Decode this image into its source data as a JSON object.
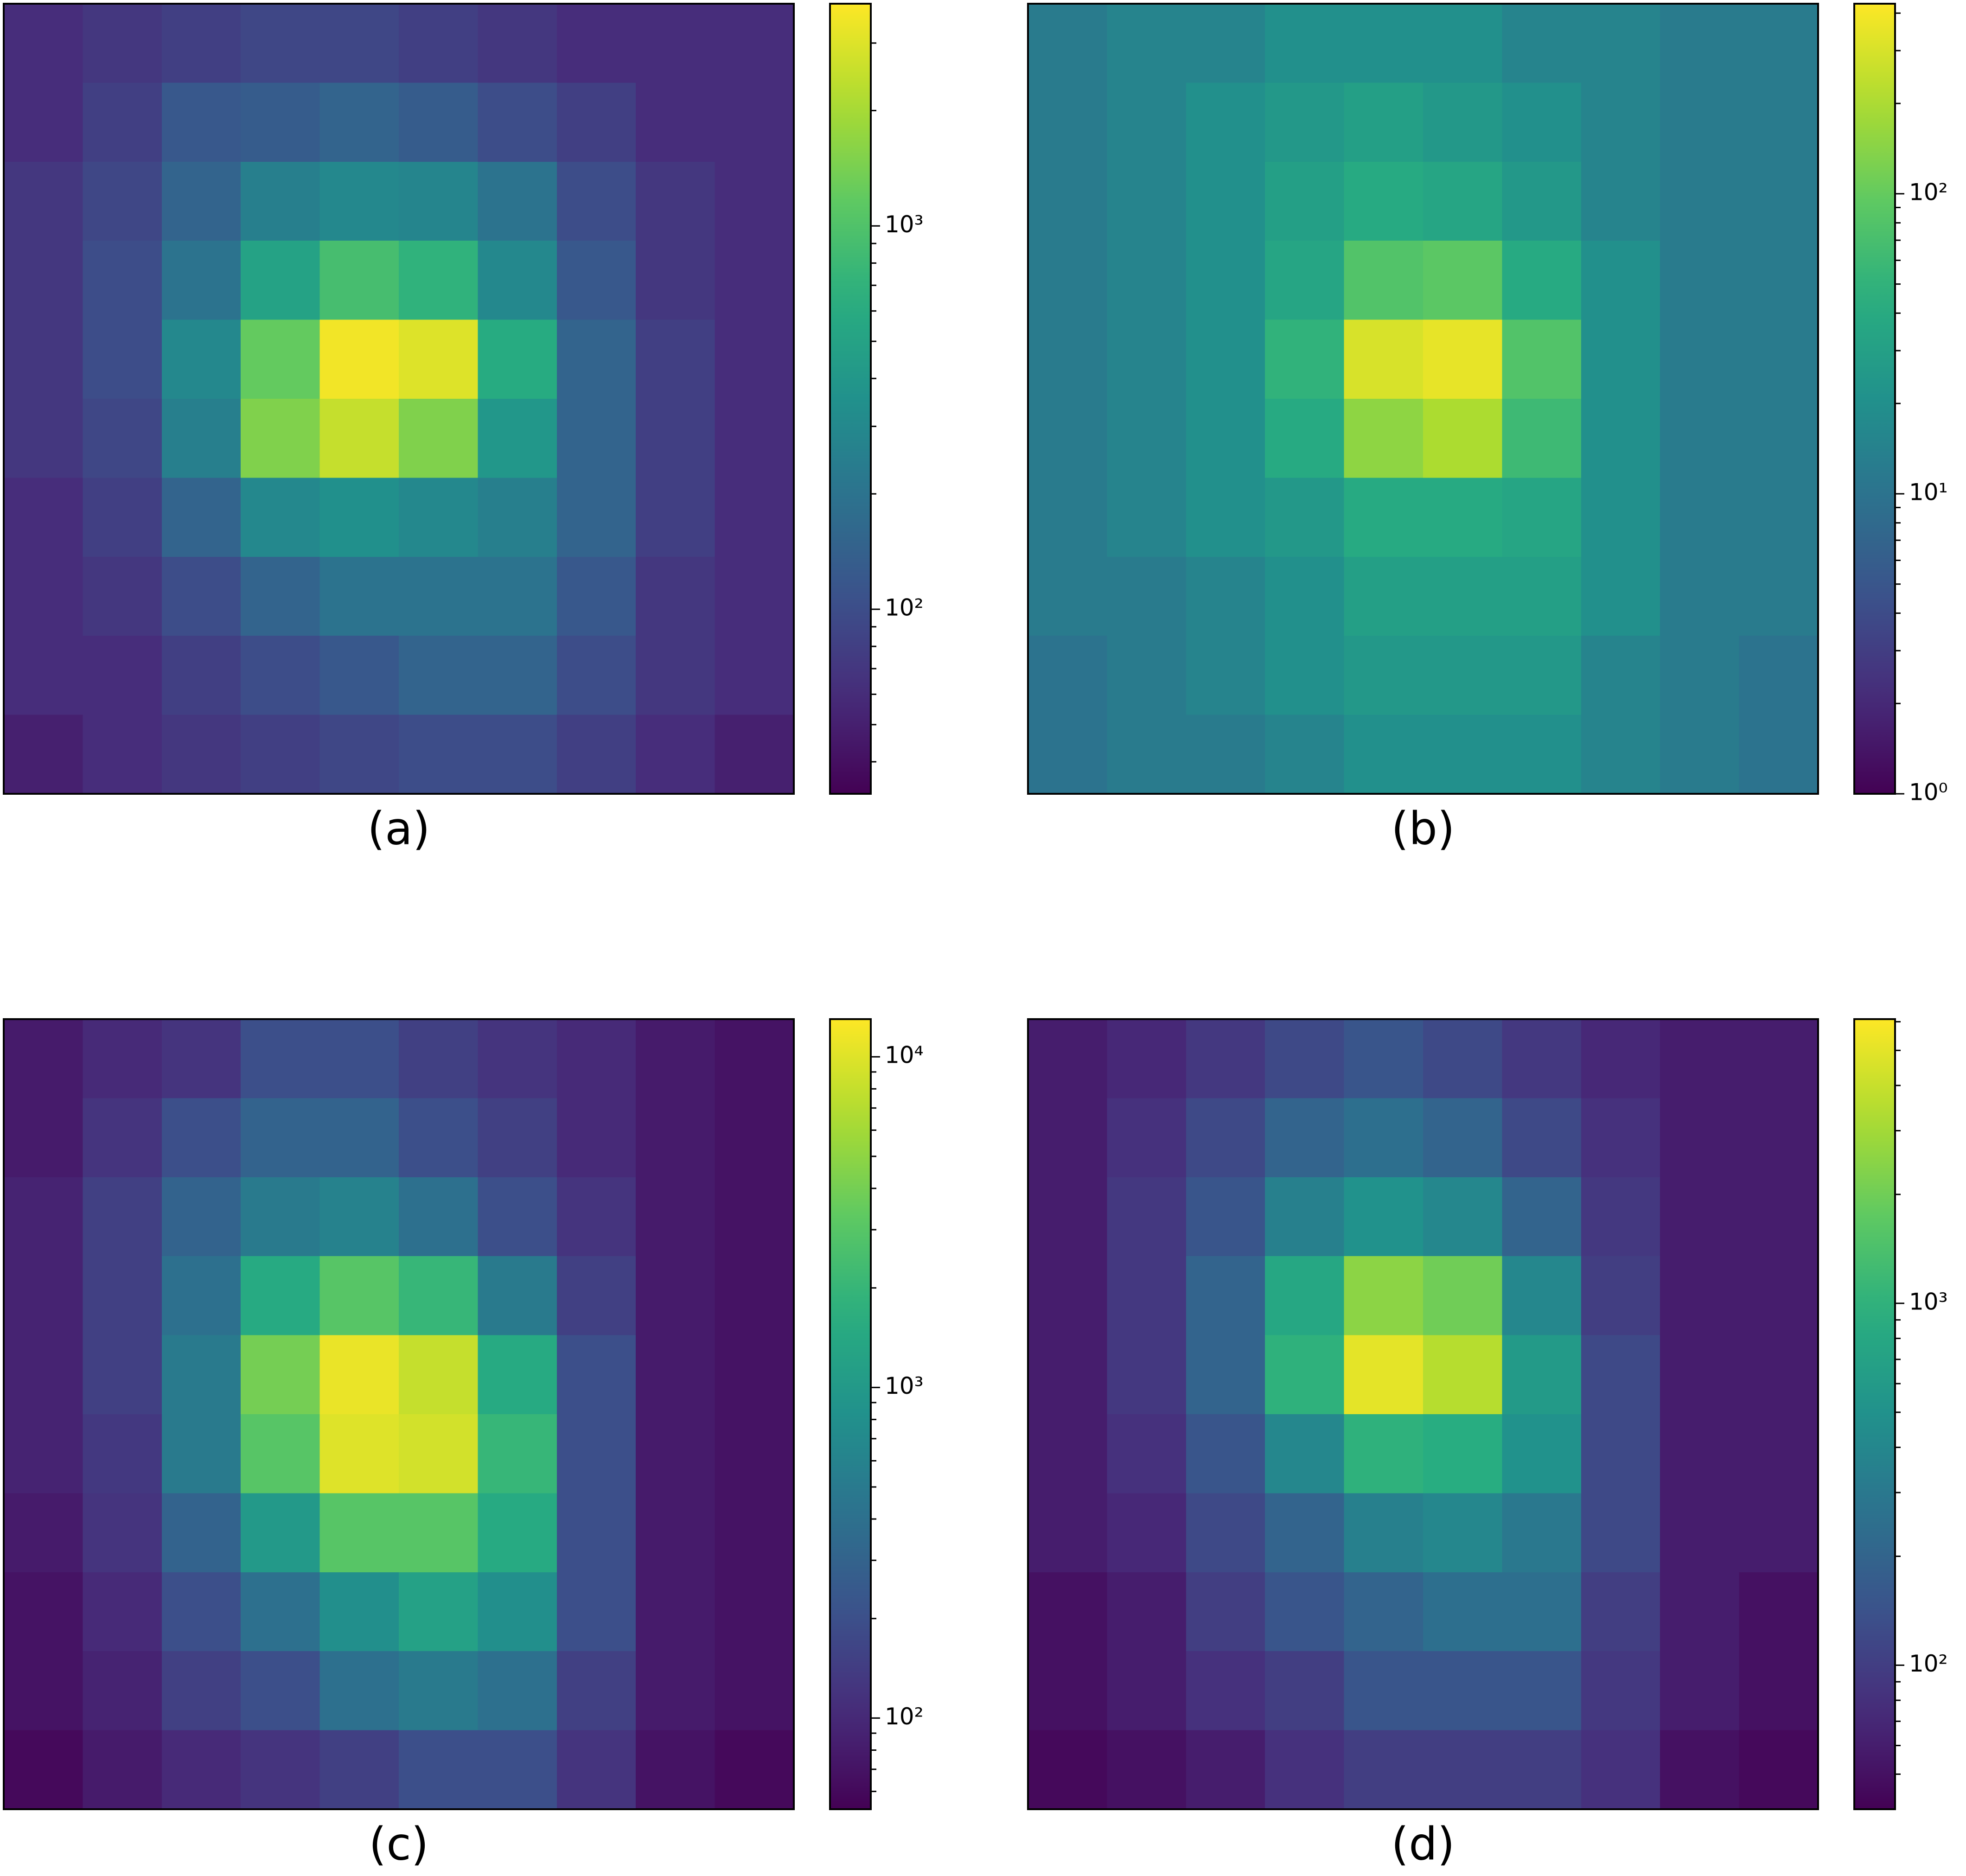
{
  "chart_data": [
    {
      "type": "heatmap",
      "caption": "(a)",
      "colormap": "viridis",
      "log_scale": true,
      "values": [
        [
          60,
          70,
          80,
          90,
          90,
          80,
          70,
          60,
          60,
          60
        ],
        [
          60,
          80,
          120,
          130,
          150,
          130,
          100,
          80,
          60,
          60
        ],
        [
          70,
          90,
          150,
          250,
          300,
          280,
          200,
          100,
          70,
          60
        ],
        [
          70,
          100,
          200,
          500,
          900,
          700,
          300,
          120,
          70,
          60
        ],
        [
          70,
          100,
          300,
          1200,
          3500,
          3000,
          600,
          150,
          80,
          60
        ],
        [
          70,
          90,
          250,
          1500,
          2500,
          1500,
          400,
          150,
          80,
          60
        ],
        [
          60,
          80,
          150,
          300,
          350,
          300,
          250,
          150,
          80,
          60
        ],
        [
          60,
          70,
          100,
          150,
          200,
          200,
          200,
          120,
          70,
          60
        ],
        [
          60,
          60,
          80,
          100,
          120,
          150,
          150,
          100,
          70,
          60
        ],
        [
          50,
          60,
          70,
          80,
          90,
          100,
          100,
          80,
          60,
          50
        ]
      ],
      "ylim": [
        33,
        3800
      ],
      "yticks": [
        {
          "value": 100,
          "label": "10²"
        },
        {
          "value": 1000,
          "label": "10³"
        }
      ],
      "yminorticks": [
        40,
        50,
        60,
        70,
        80,
        90,
        200,
        300,
        400,
        500,
        600,
        700,
        800,
        900,
        2000,
        3000
      ]
    },
    {
      "type": "heatmap",
      "caption": "(b)",
      "colormap": "viridis",
      "log_scale": true,
      "values": [
        [
          12,
          15,
          15,
          20,
          20,
          20,
          15,
          15,
          12,
          12
        ],
        [
          12,
          15,
          20,
          25,
          30,
          25,
          20,
          15,
          12,
          12
        ],
        [
          12,
          15,
          20,
          30,
          40,
          35,
          25,
          15,
          12,
          12
        ],
        [
          12,
          15,
          20,
          35,
          80,
          90,
          40,
          20,
          12,
          12
        ],
        [
          12,
          15,
          20,
          50,
          300,
          350,
          80,
          20,
          12,
          12
        ],
        [
          12,
          15,
          20,
          40,
          150,
          200,
          60,
          20,
          12,
          12
        ],
        [
          12,
          15,
          20,
          25,
          40,
          40,
          35,
          20,
          12,
          12
        ],
        [
          12,
          12,
          15,
          20,
          30,
          30,
          30,
          20,
          12,
          12
        ],
        [
          10,
          12,
          15,
          20,
          25,
          25,
          25,
          15,
          12,
          10
        ],
        [
          10,
          12,
          12,
          15,
          20,
          20,
          20,
          15,
          12,
          10
        ]
      ],
      "ylim": [
        1,
        430
      ],
      "yticks": [
        {
          "value": 1,
          "label": "10⁰"
        },
        {
          "value": 10,
          "label": "10¹"
        },
        {
          "value": 100,
          "label": "10²"
        }
      ],
      "yminorticks": [
        2,
        3,
        4,
        5,
        6,
        7,
        8,
        9,
        20,
        30,
        40,
        50,
        60,
        70,
        80,
        90,
        200,
        300,
        400
      ]
    },
    {
      "type": "heatmap",
      "caption": "(c)",
      "colormap": "viridis",
      "log_scale": true,
      "values": [
        [
          80,
          100,
          120,
          200,
          200,
          150,
          120,
          100,
          80,
          70
        ],
        [
          80,
          120,
          200,
          300,
          300,
          200,
          150,
          100,
          80,
          70
        ],
        [
          90,
          150,
          300,
          500,
          600,
          400,
          200,
          120,
          80,
          70
        ],
        [
          90,
          150,
          400,
          1500,
          3000,
          2000,
          500,
          150,
          80,
          70
        ],
        [
          90,
          150,
          500,
          4000,
          11000,
          8000,
          1500,
          200,
          80,
          70
        ],
        [
          90,
          130,
          500,
          3000,
          10000,
          9000,
          2000,
          200,
          80,
          70
        ],
        [
          80,
          120,
          300,
          1000,
          3000,
          3000,
          1500,
          200,
          80,
          70
        ],
        [
          70,
          100,
          200,
          400,
          800,
          1200,
          800,
          200,
          80,
          70
        ],
        [
          70,
          90,
          150,
          200,
          400,
          500,
          400,
          150,
          80,
          70
        ],
        [
          60,
          80,
          100,
          120,
          150,
          200,
          200,
          120,
          70,
          60
        ]
      ],
      "ylim": [
        53,
        13000
      ],
      "yticks": [
        {
          "value": 100,
          "label": "10²"
        },
        {
          "value": 1000,
          "label": "10³"
        },
        {
          "value": 10000,
          "label": "10⁴"
        }
      ],
      "yminorticks": [
        60,
        70,
        80,
        90,
        200,
        300,
        400,
        500,
        600,
        700,
        800,
        900,
        2000,
        3000,
        4000,
        5000,
        6000,
        7000,
        8000,
        9000
      ]
    },
    {
      "type": "heatmap",
      "caption": "(d)",
      "colormap": "viridis",
      "log_scale": true,
      "values": [
        [
          60,
          70,
          90,
          120,
          150,
          120,
          90,
          70,
          60,
          60
        ],
        [
          60,
          80,
          120,
          200,
          250,
          200,
          120,
          80,
          60,
          60
        ],
        [
          60,
          90,
          150,
          350,
          500,
          400,
          200,
          90,
          60,
          60
        ],
        [
          60,
          90,
          200,
          800,
          2500,
          2000,
          400,
          100,
          60,
          60
        ],
        [
          60,
          90,
          200,
          1000,
          5000,
          3500,
          600,
          120,
          60,
          60
        ],
        [
          60,
          80,
          150,
          400,
          1000,
          900,
          500,
          120,
          60,
          60
        ],
        [
          60,
          70,
          120,
          200,
          350,
          400,
          300,
          120,
          60,
          60
        ],
        [
          50,
          60,
          100,
          150,
          200,
          250,
          250,
          100,
          60,
          50
        ],
        [
          50,
          60,
          80,
          100,
          150,
          150,
          150,
          90,
          60,
          50
        ],
        [
          45,
          50,
          60,
          80,
          100,
          100,
          100,
          80,
          50,
          45
        ]
      ],
      "ylim": [
        40,
        6100
      ],
      "yticks": [
        {
          "value": 100,
          "label": "10²"
        },
        {
          "value": 1000,
          "label": "10³"
        }
      ],
      "yminorticks": [
        50,
        60,
        70,
        80,
        90,
        200,
        300,
        400,
        500,
        600,
        700,
        800,
        900,
        2000,
        3000,
        4000,
        5000,
        6000
      ]
    }
  ]
}
